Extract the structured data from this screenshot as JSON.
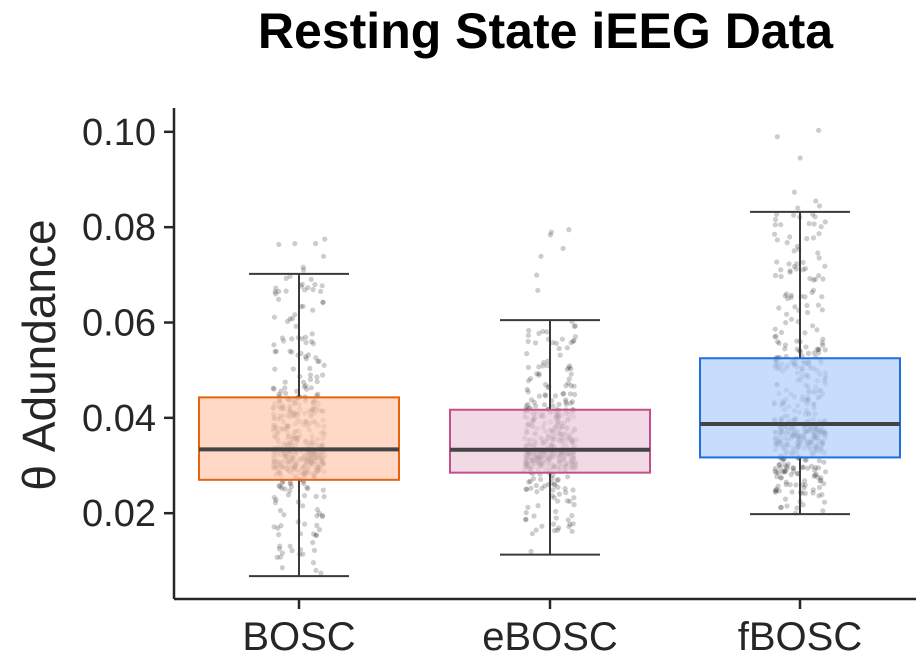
{
  "chart_data": {
    "type": "box",
    "title": "Resting State iEEG Data",
    "xlabel": "",
    "ylabel": "θ Adundance",
    "ylim": [
      0.002,
      0.105
    ],
    "yticks": [
      0.02,
      0.04,
      0.06,
      0.08,
      0.1
    ],
    "ytick_labels": [
      "0.02",
      "0.04",
      "0.06",
      "0.08",
      "0.10"
    ],
    "categories": [
      "BOSC",
      "eBOSC",
      "fBOSC"
    ],
    "grid": false,
    "legend": "none",
    "boxes": [
      {
        "category": "BOSC",
        "whisker_low": 0.0068,
        "q1": 0.027,
        "median": 0.0334,
        "q3": 0.0443,
        "whisker_high": 0.0702,
        "color": "#e8640c",
        "fill": "#ffcbaf",
        "n_points": 450,
        "max_point": 0.0775,
        "min_point": 0.008
      },
      {
        "category": "eBOSC",
        "whisker_low": 0.0113,
        "q1": 0.0285,
        "median": 0.0333,
        "q3": 0.0417,
        "whisker_high": 0.0605,
        "color": "#c4508a",
        "fill": "#eccbdd",
        "n_points": 450,
        "max_point": 0.0795,
        "min_point": 0.012
      },
      {
        "category": "fBOSC",
        "whisker_low": 0.0198,
        "q1": 0.0317,
        "median": 0.0387,
        "q3": 0.0525,
        "whisker_high": 0.0832,
        "color": "#1f6fe0",
        "fill": "#b3cffb",
        "n_points": 450,
        "max_point": 0.1003,
        "min_point": 0.02
      }
    ]
  }
}
